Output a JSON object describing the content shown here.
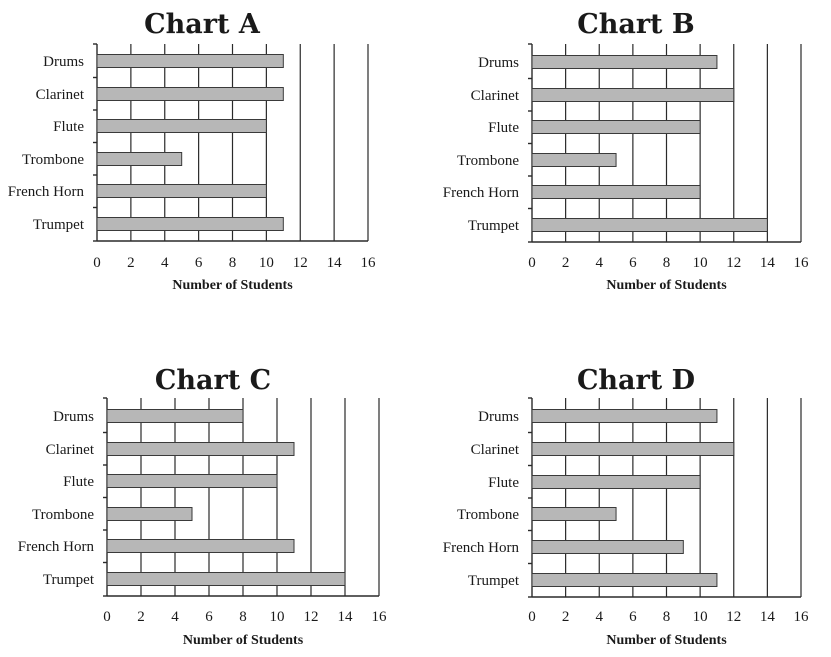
{
  "chart_data": [
    {
      "type": "bar",
      "orientation": "horizontal",
      "title": "Chart A",
      "xlabel": "Number of Students",
      "categories": [
        "Drums",
        "Clarinet",
        "Flute",
        "Trombone",
        "French Horn",
        "Trumpet"
      ],
      "values": [
        11,
        11,
        10,
        5,
        10,
        11
      ],
      "xlim": [
        0,
        16
      ],
      "ticks": [
        "0",
        "2",
        "4",
        "6",
        "8",
        "10",
        "12",
        "14",
        "16"
      ],
      "grid": true
    },
    {
      "type": "bar",
      "orientation": "horizontal",
      "title": "Chart B",
      "xlabel": "Number of Students",
      "categories": [
        "Drums",
        "Clarinet",
        "Flute",
        "Trombone",
        "French Horn",
        "Trumpet"
      ],
      "values": [
        11,
        12,
        10,
        5,
        10,
        14
      ],
      "xlim": [
        0,
        16
      ],
      "ticks": [
        "0",
        "2",
        "4",
        "6",
        "8",
        "10",
        "12",
        "14",
        "16"
      ],
      "grid": true
    },
    {
      "type": "bar",
      "orientation": "horizontal",
      "title": "Chart C",
      "xlabel": "Number of Students",
      "categories": [
        "Drums",
        "Clarinet",
        "Flute",
        "Trombone",
        "French Horn",
        "Trumpet"
      ],
      "values": [
        8,
        11,
        10,
        5,
        11,
        14
      ],
      "xlim": [
        0,
        16
      ],
      "ticks": [
        "0",
        "2",
        "4",
        "6",
        "8",
        "10",
        "12",
        "14",
        "16"
      ],
      "grid": true
    },
    {
      "type": "bar",
      "orientation": "horizontal",
      "title": "Chart D",
      "xlabel": "Number of Students",
      "categories": [
        "Drums",
        "Clarinet",
        "Flute",
        "Trombone",
        "French Horn",
        "Trumpet"
      ],
      "values": [
        11,
        12,
        10,
        5,
        9,
        11
      ],
      "xlim": [
        0,
        16
      ],
      "ticks": [
        "0",
        "2",
        "4",
        "6",
        "8",
        "10",
        "12",
        "14",
        "16"
      ],
      "grid": true
    }
  ]
}
